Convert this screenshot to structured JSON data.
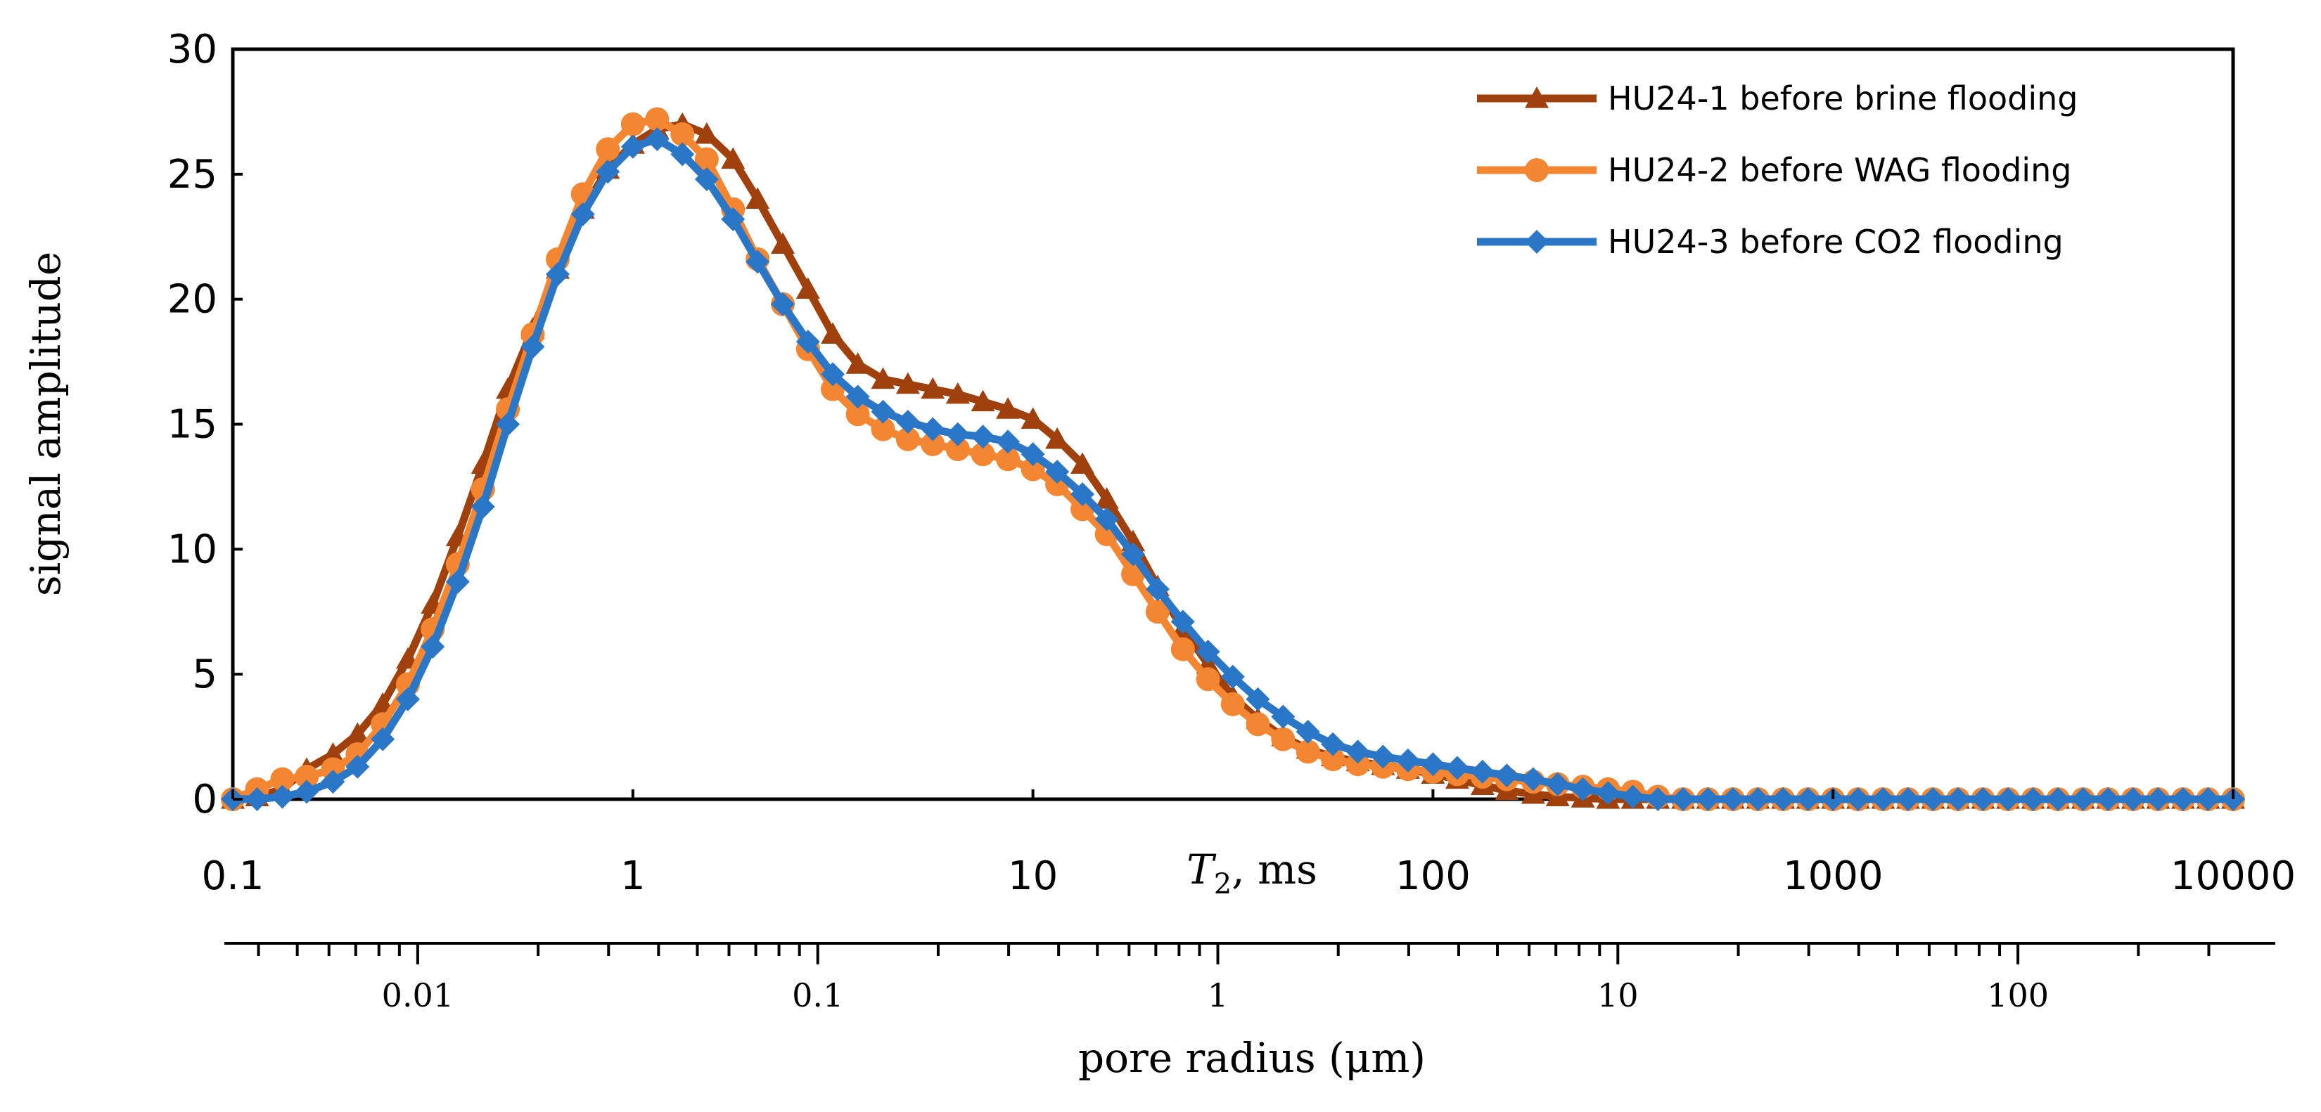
{
  "chart_data": {
    "type": "line",
    "title": "",
    "ylabel": "signal amplitude",
    "xlabel_top": {
      "italic": "T",
      "sub": "2",
      "rest": ", ms"
    },
    "xlabel_bottom": "pore radius (μm)",
    "x_scale": "log",
    "xlim": [
      0.1,
      10000
    ],
    "ylim": [
      0,
      30
    ],
    "y_ticks": [
      "0",
      "5",
      "10",
      "15",
      "20",
      "25",
      "30"
    ],
    "x_ticks_top": [
      "0.1",
      "1",
      "10",
      "100",
      "1000",
      "10000"
    ],
    "x_ticks_bottom": [
      "0.01",
      "0.1",
      "1",
      "10",
      "100"
    ],
    "secondary_axis": {
      "label": "pore radius (μm)",
      "radius_per_ms": 0.0345
    },
    "legend_position": "top-right",
    "series": [
      {
        "name": "HU24-1 before brine flooding",
        "color": "#a0400c",
        "marker": "triangle",
        "x": [
          0.1,
          0.115,
          0.133,
          0.153,
          0.178,
          0.205,
          0.237,
          0.274,
          0.316,
          0.365,
          0.422,
          0.487,
          0.562,
          0.649,
          0.75,
          0.866,
          1.0,
          1.15,
          1.33,
          1.53,
          1.78,
          2.05,
          2.37,
          2.74,
          3.16,
          3.65,
          4.22,
          4.87,
          5.62,
          6.49,
          7.5,
          8.66,
          10.0,
          11.5,
          13.3,
          15.3,
          17.8,
          20.5,
          23.7,
          27.4,
          31.6,
          36.5,
          42.2,
          48.7,
          56.2,
          64.9,
          75.0,
          86.6,
          100,
          115,
          133,
          153,
          178,
          205,
          237,
          274,
          316,
          365,
          422,
          487,
          562,
          649,
          750,
          866,
          1000,
          1155,
          1334,
          1540,
          1778,
          2054,
          2371,
          2738,
          3162,
          3652,
          4217,
          4870,
          5623,
          6494,
          7499,
          8660,
          10000
        ],
        "y": [
          0.0,
          0.1,
          0.4,
          1.2,
          1.8,
          2.6,
          3.8,
          5.6,
          7.8,
          10.5,
          13.4,
          16.4,
          18.8,
          21.2,
          23.6,
          25.2,
          26.2,
          26.8,
          27.0,
          26.6,
          25.6,
          24.0,
          22.2,
          20.4,
          18.6,
          17.4,
          16.8,
          16.6,
          16.4,
          16.2,
          15.9,
          15.6,
          15.2,
          14.4,
          13.4,
          12.0,
          10.3,
          8.5,
          6.8,
          5.4,
          4.1,
          3.2,
          2.5,
          2.0,
          1.7,
          1.5,
          1.35,
          1.2,
          1.0,
          0.8,
          0.55,
          0.35,
          0.2,
          0.1,
          0.05,
          0,
          0,
          0,
          0,
          0,
          0,
          0,
          0,
          0,
          0,
          0,
          0,
          0,
          0,
          0,
          0,
          0,
          0,
          0,
          0,
          0,
          0,
          0,
          0,
          0,
          0
        ]
      },
      {
        "name": "HU24-2 before WAG flooding",
        "color": "#f58631",
        "marker": "circle",
        "x": [
          0.1,
          0.115,
          0.133,
          0.153,
          0.178,
          0.205,
          0.237,
          0.274,
          0.316,
          0.365,
          0.422,
          0.487,
          0.562,
          0.649,
          0.75,
          0.866,
          1.0,
          1.15,
          1.33,
          1.53,
          1.78,
          2.05,
          2.37,
          2.74,
          3.16,
          3.65,
          4.22,
          4.87,
          5.62,
          6.49,
          7.5,
          8.66,
          10.0,
          11.5,
          13.3,
          15.3,
          17.8,
          20.5,
          23.7,
          27.4,
          31.6,
          36.5,
          42.2,
          48.7,
          56.2,
          64.9,
          75.0,
          86.6,
          100,
          115,
          133,
          153,
          178,
          205,
          237,
          274,
          316,
          365,
          422,
          487,
          562,
          649,
          750,
          866,
          1000,
          1155,
          1334,
          1540,
          1778,
          2054,
          2371,
          2738,
          3162,
          3652,
          4217,
          4870,
          5623,
          6494,
          7499,
          8660,
          10000
        ],
        "y": [
          0.0,
          0.4,
          0.8,
          0.9,
          1.2,
          1.8,
          3.0,
          4.6,
          6.8,
          9.4,
          12.4,
          15.6,
          18.6,
          21.6,
          24.2,
          26.0,
          27.0,
          27.2,
          26.6,
          25.6,
          23.6,
          21.6,
          19.8,
          18.0,
          16.4,
          15.4,
          14.8,
          14.4,
          14.2,
          14.0,
          13.8,
          13.6,
          13.2,
          12.6,
          11.6,
          10.6,
          9.0,
          7.5,
          6.0,
          4.8,
          3.8,
          3.0,
          2.4,
          1.9,
          1.6,
          1.4,
          1.3,
          1.2,
          1.1,
          1.0,
          0.9,
          0.8,
          0.7,
          0.6,
          0.5,
          0.4,
          0.3,
          0.1,
          0,
          0,
          0,
          0,
          0,
          0,
          0,
          0,
          0,
          0,
          0,
          0,
          0,
          0,
          0,
          0,
          0,
          0,
          0,
          0,
          0,
          0,
          0
        ]
      },
      {
        "name": "HU24-3 before CO2 flooding",
        "color": "#2a77c8",
        "marker": "diamond",
        "x": [
          0.1,
          0.115,
          0.133,
          0.153,
          0.178,
          0.205,
          0.237,
          0.274,
          0.316,
          0.365,
          0.422,
          0.487,
          0.562,
          0.649,
          0.75,
          0.866,
          1.0,
          1.15,
          1.33,
          1.53,
          1.78,
          2.05,
          2.37,
          2.74,
          3.16,
          3.65,
          4.22,
          4.87,
          5.62,
          6.49,
          7.5,
          8.66,
          10.0,
          11.5,
          13.3,
          15.3,
          17.8,
          20.5,
          23.7,
          27.4,
          31.6,
          36.5,
          42.2,
          48.7,
          56.2,
          64.9,
          75.0,
          86.6,
          100,
          115,
          133,
          153,
          178,
          205,
          237,
          274,
          316,
          365,
          422,
          487,
          562,
          649,
          750,
          866,
          1000,
          1155,
          1334,
          1540,
          1778,
          2054,
          2371,
          2738,
          3162,
          3652,
          4217,
          4870,
          5623,
          6494,
          7499,
          8660,
          10000
        ],
        "y": [
          0.0,
          0.0,
          0.1,
          0.3,
          0.7,
          1.3,
          2.4,
          4.0,
          6.1,
          8.7,
          11.7,
          15.0,
          18.1,
          21.0,
          23.4,
          25.1,
          26.1,
          26.4,
          25.8,
          24.8,
          23.2,
          21.5,
          19.8,
          18.3,
          17.0,
          16.1,
          15.5,
          15.1,
          14.8,
          14.6,
          14.5,
          14.3,
          13.8,
          13.1,
          12.2,
          11.2,
          9.8,
          8.4,
          7.1,
          5.9,
          4.9,
          4.0,
          3.3,
          2.7,
          2.2,
          1.9,
          1.7,
          1.55,
          1.4,
          1.25,
          1.1,
          0.95,
          0.8,
          0.6,
          0.4,
          0.25,
          0.1,
          0,
          0,
          0,
          0,
          0,
          0,
          0,
          0,
          0,
          0,
          0,
          0,
          0,
          0,
          0,
          0,
          0,
          0,
          0,
          0,
          0,
          0,
          0,
          0
        ]
      }
    ]
  }
}
